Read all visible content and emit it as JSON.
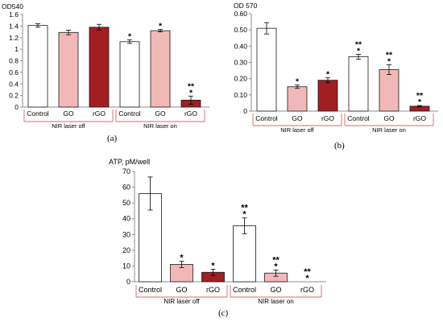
{
  "colors": {
    "white_bar": "#ffffff",
    "go_bar": "#f2b8b8",
    "rgo_bar": "#a11e23",
    "bar_stroke": "#1a1a1a",
    "group_line": "#e06666",
    "axis": "#8c8c8c"
  },
  "panel_labels": [
    "(a)",
    "(b)",
    "(c)"
  ],
  "chart_data": [
    {
      "type": "bar",
      "panel": "(a)",
      "ylabel": "OD540",
      "ylim": [
        0,
        1.6
      ],
      "yticks": [
        "0",
        "0.2",
        "0.4",
        "0.6",
        "0.8",
        "1",
        "1.2",
        "1.4",
        "1.6"
      ],
      "categories": [
        "Control",
        "GO",
        "rGO",
        "Control",
        "GO",
        "rGO"
      ],
      "values": [
        1.41,
        1.29,
        1.38,
        1.13,
        1.32,
        0.12
      ],
      "errors": [
        0.03,
        0.04,
        0.05,
        0.03,
        0.02,
        0.07
      ],
      "bar_color_keys": [
        "white_bar",
        "go_bar",
        "rgo_bar",
        "white_bar",
        "go_bar",
        "rgo_bar"
      ],
      "significance": [
        "",
        "",
        "",
        "*",
        "*",
        "**\n*"
      ],
      "groups": [
        {
          "label": "NIR laser off",
          "span": [
            0,
            2
          ]
        },
        {
          "label": "NIR laser on",
          "span": [
            3,
            5
          ]
        }
      ],
      "grid": false
    },
    {
      "type": "bar",
      "panel": "(b)",
      "ylabel": "OD 570",
      "ylim": [
        0,
        0.6
      ],
      "yticks": [
        "0",
        "0.10",
        "0.20",
        "0.30",
        "0.40",
        "0.50",
        "0.60"
      ],
      "categories": [
        "Control",
        "GO",
        "rGO",
        "Control",
        "GO",
        "rGO"
      ],
      "values": [
        0.51,
        0.15,
        0.19,
        0.335,
        0.255,
        0.03
      ],
      "errors": [
        0.035,
        0.01,
        0.015,
        0.015,
        0.03,
        0.004
      ],
      "bar_color_keys": [
        "white_bar",
        "go_bar",
        "rgo_bar",
        "white_bar",
        "go_bar",
        "rgo_bar"
      ],
      "significance": [
        "",
        "*",
        "*",
        "**\n*",
        "**\n*",
        "**\n*"
      ],
      "groups": [
        {
          "label": "NIR laser off",
          "span": [
            0,
            2
          ]
        },
        {
          "label": "NIR laser on",
          "span": [
            3,
            5
          ]
        }
      ],
      "grid": false
    },
    {
      "type": "bar",
      "panel": "(c)",
      "ylabel": "ATP, pM/well",
      "ylim": [
        0,
        70
      ],
      "yticks": [
        "0",
        "10",
        "20",
        "30",
        "40",
        "50",
        "60",
        "70"
      ],
      "categories": [
        "Control",
        "GO",
        "rGO",
        "Control",
        "GO",
        "rGO"
      ],
      "values": [
        56,
        11,
        6,
        35.5,
        5.5,
        0
      ],
      "errors": [
        10.5,
        2,
        2,
        5,
        2,
        0
      ],
      "bar_color_keys": [
        "white_bar",
        "go_bar",
        "rgo_bar",
        "white_bar",
        "go_bar",
        "rgo_bar"
      ],
      "significance": [
        "",
        "*",
        "*",
        "**\n*",
        "**\n*",
        "**\n*"
      ],
      "groups": [
        {
          "label": "NIR laser off",
          "span": [
            0,
            2
          ]
        },
        {
          "label": "NIR laser on",
          "span": [
            3,
            5
          ]
        }
      ],
      "grid": false
    }
  ]
}
